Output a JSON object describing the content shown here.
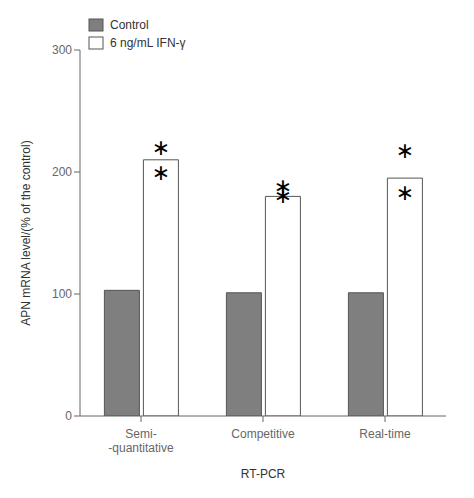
{
  "chart_data": {
    "type": "bar",
    "categories": [
      "Semi-\n-quantitative",
      "Competitive",
      "Real-time"
    ],
    "series": [
      {
        "name": "Control",
        "color": "#7f7f7f",
        "values": [
          103,
          101,
          101
        ]
      },
      {
        "name": "6 ng/mL IFN-γ",
        "color": "#ffffff",
        "values": [
          210,
          180,
          195
        ]
      }
    ],
    "xlabel": "RT-PCR",
    "ylabel": "APN mRNA level/(% of the control)",
    "ylim": [
      0,
      300
    ],
    "yticks": [
      0,
      100,
      200,
      300
    ],
    "legend": "upper left",
    "grid": false,
    "annotations": [
      {
        "text": "∗",
        "category": "Semi-\n-quantitative",
        "series": "6 ng/mL IFN-γ",
        "y": 220
      },
      {
        "text": "∗",
        "category": "Competitive",
        "series": "6 ng/mL IFN-γ",
        "y": 188
      },
      {
        "text": "∗",
        "category": "Real-time",
        "series": "6 ng/mL IFN-γ",
        "y": 218
      },
      {
        "text": "∗",
        "category": "Semi-\n-quantitative",
        "series": "6 ng/mL IFN-γ",
        "y": 200
      },
      {
        "text": "∗",
        "category": "Competitive",
        "series": "6 ng/mL IFN-γ",
        "y": 181
      },
      {
        "text": "∗",
        "category": "Real-time",
        "series": "6 ng/mL IFN-γ",
        "y": 183
      }
    ]
  }
}
